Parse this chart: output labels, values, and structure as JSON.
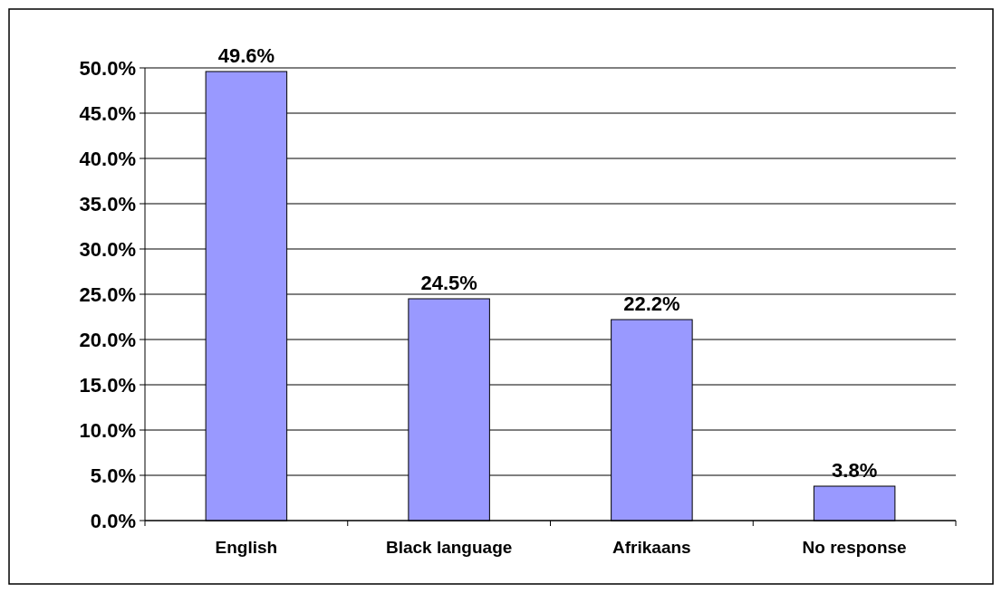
{
  "chart_data": {
    "type": "bar",
    "categories": [
      "English",
      "Black language",
      "Afrikaans",
      "No response"
    ],
    "values": [
      49.6,
      24.5,
      22.2,
      3.8
    ],
    "value_labels": [
      "49.6%",
      "24.5%",
      "22.2%",
      "3.8%"
    ],
    "color": "#9999ff",
    "ylim": [
      0,
      50
    ],
    "yticks": [
      {
        "value": 0,
        "label": "0.0%"
      },
      {
        "value": 5,
        "label": "5.0%"
      },
      {
        "value": 10,
        "label": "10.0%"
      },
      {
        "value": 15,
        "label": "15.0%"
      },
      {
        "value": 20,
        "label": "20.0%"
      },
      {
        "value": 25,
        "label": "25.0%"
      },
      {
        "value": 30,
        "label": "30.0%"
      },
      {
        "value": 35,
        "label": "35.0%"
      },
      {
        "value": 40,
        "label": "40.0%"
      },
      {
        "value": 45,
        "label": "45.0%"
      },
      {
        "value": 50,
        "label": "50.0%"
      }
    ],
    "grid": "y"
  }
}
